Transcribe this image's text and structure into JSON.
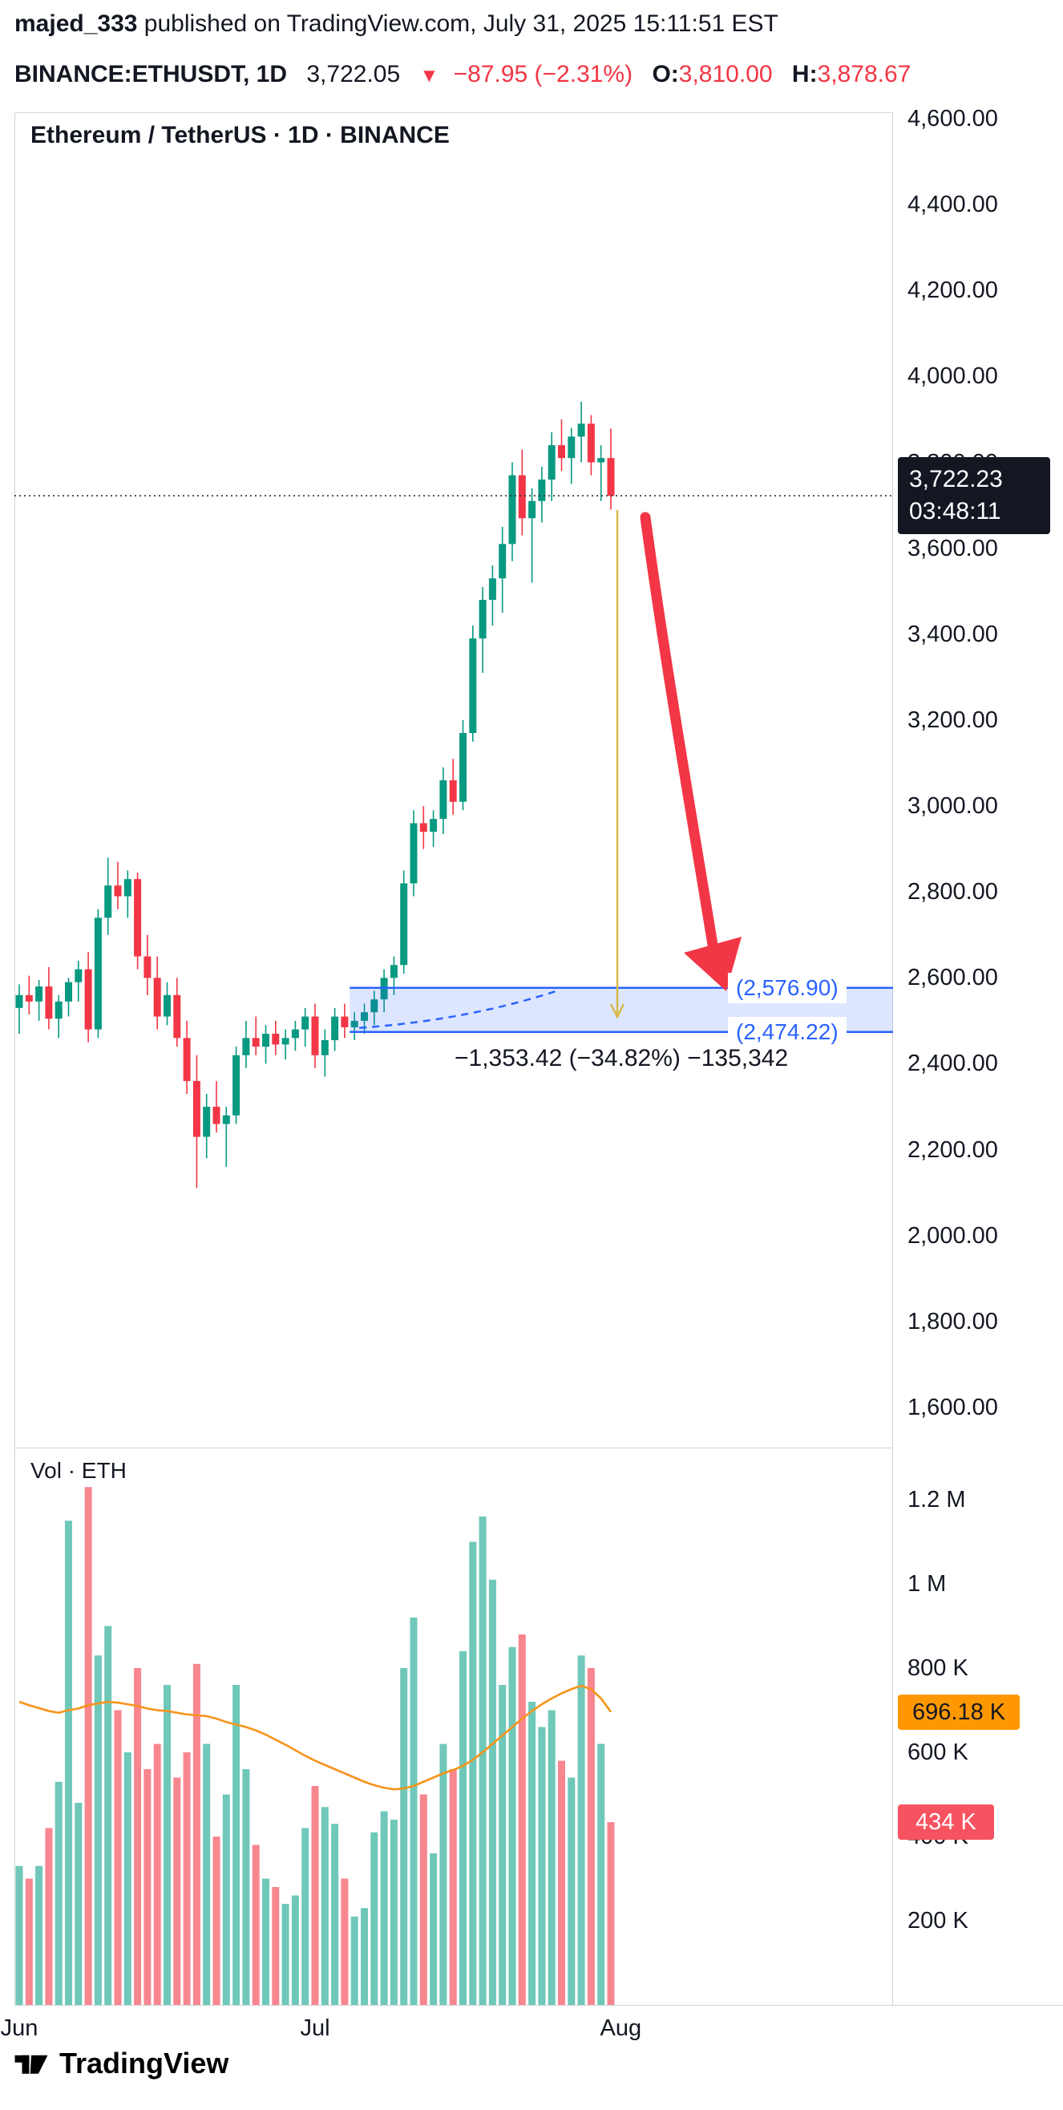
{
  "header": {
    "author": "majed_333",
    "published_suffix": " published on TradingView.com, July 31, 2025 15:11:51 EST",
    "quote": {
      "symbol": "BINANCE:ETHUSDT, 1D",
      "last": "3,722.05",
      "direction_icon": "▼",
      "change": "−87.95 (−2.31%)",
      "open_label": "O:",
      "open": "3,810.00",
      "high_label": "H:",
      "high": "3,878.67"
    }
  },
  "chart": {
    "watermark": "Ethereum / TetherUS · 1D · BINANCE",
    "price_label": {
      "price": "3,722.23",
      "countdown": "03:48:11",
      "value": 3722.23
    },
    "projection": {
      "top_label": "(2,576.90)",
      "bottom_label": "(2,474.22)",
      "top_value": 2576.9,
      "bottom_value": 2474.22,
      "span_start_index": 34,
      "stats": "−1,353.42 (−34.82%) −135,342"
    },
    "volume_title": "Vol · ETH",
    "vol_ma": {
      "label": "696.18 K",
      "value": 696.18
    },
    "vol_last": {
      "label": "434 K",
      "value": 434
    }
  },
  "axes": {
    "price_ticks": [
      {
        "value": 4600,
        "label": "4,600.00"
      },
      {
        "value": 4400,
        "label": "4,400.00"
      },
      {
        "value": 4200,
        "label": "4,200.00"
      },
      {
        "value": 4000,
        "label": "4,000.00"
      },
      {
        "value": 3800,
        "label": "3,800.00"
      },
      {
        "value": 3600,
        "label": "3,600.00"
      },
      {
        "value": 3400,
        "label": "3,400.00"
      },
      {
        "value": 3200,
        "label": "3,200.00"
      },
      {
        "value": 3000,
        "label": "3,000.00"
      },
      {
        "value": 2800,
        "label": "2,800.00"
      },
      {
        "value": 2600,
        "label": "2,600.00"
      },
      {
        "value": 2400,
        "label": "2,400.00"
      },
      {
        "value": 2200,
        "label": "2,200.00"
      },
      {
        "value": 2000,
        "label": "2,000.00"
      },
      {
        "value": 1800,
        "label": "1,800.00"
      },
      {
        "value": 1600,
        "label": "1,600.00"
      }
    ],
    "volume_ticks": [
      {
        "value": 1200,
        "label": "1.2 M"
      },
      {
        "value": 1000,
        "label": "1 M"
      },
      {
        "value": 800,
        "label": "800 K"
      },
      {
        "value": 600,
        "label": "600 K"
      },
      {
        "value": 400,
        "label": "400 K"
      },
      {
        "value": 200,
        "label": "200 K"
      }
    ],
    "time_ticks": [
      {
        "label": "Jun",
        "index": 0
      },
      {
        "label": "Jul",
        "index": 30
      },
      {
        "label": "Aug",
        "index": 61
      }
    ]
  },
  "chart_data": {
    "type": "candlestick",
    "symbol": "BINANCE:ETHUSDT",
    "interval": "1D",
    "title": "Ethereum / TetherUS · 1D · BINANCE",
    "price_range_visible": [
      1600,
      4600
    ],
    "volume_range_visible": [
      0,
      1300
    ],
    "candles_format": [
      "open",
      "high",
      "low",
      "close",
      "volume_thousands"
    ],
    "candles": [
      [
        2530,
        2585,
        2470,
        2560,
        330
      ],
      [
        2560,
        2605,
        2515,
        2545,
        300
      ],
      [
        2545,
        2595,
        2500,
        2580,
        330
      ],
      [
        2580,
        2625,
        2480,
        2505,
        420
      ],
      [
        2505,
        2560,
        2460,
        2545,
        530
      ],
      [
        2545,
        2600,
        2510,
        2590,
        1150
      ],
      [
        2590,
        2640,
        2545,
        2620,
        480
      ],
      [
        2620,
        2660,
        2450,
        2480,
        1230
      ],
      [
        2480,
        2760,
        2460,
        2740,
        830
      ],
      [
        2740,
        2880,
        2700,
        2815,
        900
      ],
      [
        2815,
        2870,
        2760,
        2790,
        700
      ],
      [
        2790,
        2850,
        2740,
        2830,
        600
      ],
      [
        2830,
        2845,
        2620,
        2650,
        800
      ],
      [
        2650,
        2700,
        2560,
        2600,
        560
      ],
      [
        2600,
        2650,
        2480,
        2510,
        620
      ],
      [
        2510,
        2590,
        2490,
        2560,
        760
      ],
      [
        2560,
        2600,
        2440,
        2460,
        540
      ],
      [
        2460,
        2500,
        2330,
        2360,
        600
      ],
      [
        2360,
        2420,
        2111,
        2230,
        810
      ],
      [
        2230,
        2330,
        2180,
        2300,
        620
      ],
      [
        2300,
        2360,
        2240,
        2260,
        400
      ],
      [
        2260,
        2300,
        2160,
        2280,
        500
      ],
      [
        2280,
        2440,
        2260,
        2420,
        760
      ],
      [
        2420,
        2500,
        2390,
        2460,
        560
      ],
      [
        2460,
        2510,
        2420,
        2440,
        380
      ],
      [
        2440,
        2490,
        2400,
        2470,
        300
      ],
      [
        2470,
        2500,
        2420,
        2445,
        280
      ],
      [
        2445,
        2480,
        2410,
        2460,
        240
      ],
      [
        2460,
        2500,
        2430,
        2480,
        260
      ],
      [
        2480,
        2530,
        2440,
        2510,
        420
      ],
      [
        2510,
        2540,
        2390,
        2420,
        520
      ],
      [
        2420,
        2480,
        2370,
        2455,
        470
      ],
      [
        2455,
        2530,
        2430,
        2510,
        430
      ],
      [
        2510,
        2540,
        2460,
        2485,
        300
      ],
      [
        2485,
        2520,
        2455,
        2500,
        210
      ],
      [
        2500,
        2540,
        2470,
        2520,
        230
      ],
      [
        2520,
        2570,
        2490,
        2550,
        410
      ],
      [
        2550,
        2620,
        2520,
        2600,
        460
      ],
      [
        2600,
        2650,
        2560,
        2630,
        440
      ],
      [
        2630,
        2850,
        2610,
        2820,
        800
      ],
      [
        2820,
        2990,
        2790,
        2960,
        920
      ],
      [
        2960,
        3000,
        2900,
        2940,
        500
      ],
      [
        2940,
        2990,
        2905,
        2970,
        360
      ],
      [
        2970,
        3090,
        2935,
        3060,
        620
      ],
      [
        3060,
        3110,
        2980,
        3010,
        560
      ],
      [
        3010,
        3200,
        2990,
        3170,
        840
      ],
      [
        3170,
        3420,
        3150,
        3390,
        1100
      ],
      [
        3390,
        3510,
        3310,
        3480,
        1160
      ],
      [
        3480,
        3560,
        3420,
        3530,
        1010
      ],
      [
        3530,
        3650,
        3450,
        3610,
        760
      ],
      [
        3610,
        3800,
        3570,
        3770,
        850
      ],
      [
        3770,
        3830,
        3630,
        3670,
        880
      ],
      [
        3670,
        3740,
        3520,
        3710,
        720
      ],
      [
        3710,
        3790,
        3660,
        3760,
        660
      ],
      [
        3760,
        3870,
        3710,
        3840,
        700
      ],
      [
        3840,
        3900,
        3780,
        3810,
        580
      ],
      [
        3810,
        3880,
        3750,
        3860,
        540
      ],
      [
        3860,
        3941,
        3800,
        3890,
        830
      ],
      [
        3890,
        3910,
        3770,
        3800,
        800
      ],
      [
        3800,
        3840,
        3710,
        3810,
        620
      ],
      [
        3810,
        3878.67,
        3690,
        3722.05,
        434
      ]
    ],
    "volume_ma": [
      720,
      712,
      705,
      698,
      694,
      700,
      704,
      712,
      716,
      720,
      718,
      714,
      710,
      704,
      700,
      698,
      694,
      690,
      688,
      686,
      680,
      672,
      666,
      660,
      652,
      642,
      630,
      618,
      605,
      592,
      580,
      570,
      560,
      550,
      540,
      530,
      522,
      516,
      512,
      514,
      520,
      530,
      540,
      550,
      558,
      568,
      582,
      600,
      620,
      640,
      660,
      680,
      698,
      714,
      728,
      740,
      750,
      758,
      750,
      728,
      696
    ],
    "colors": {
      "up": "#089981",
      "down": "#F23645",
      "volume_up": "rgba(34,171,148,0.65)",
      "volume_down": "rgba(242,54,69,0.6)",
      "ma": "#F7931A",
      "projection": "#2962FF",
      "projection_fill": "rgba(41,98,255,0.16)",
      "guide_arrow": "#D9B945",
      "last_price_line": "#2A2E39",
      "badge_price_bg": "#131722",
      "badge_ma_bg": "#FF9800",
      "badge_last_bg": "#F7525F"
    }
  },
  "footer": {
    "brand": "TradingView"
  }
}
